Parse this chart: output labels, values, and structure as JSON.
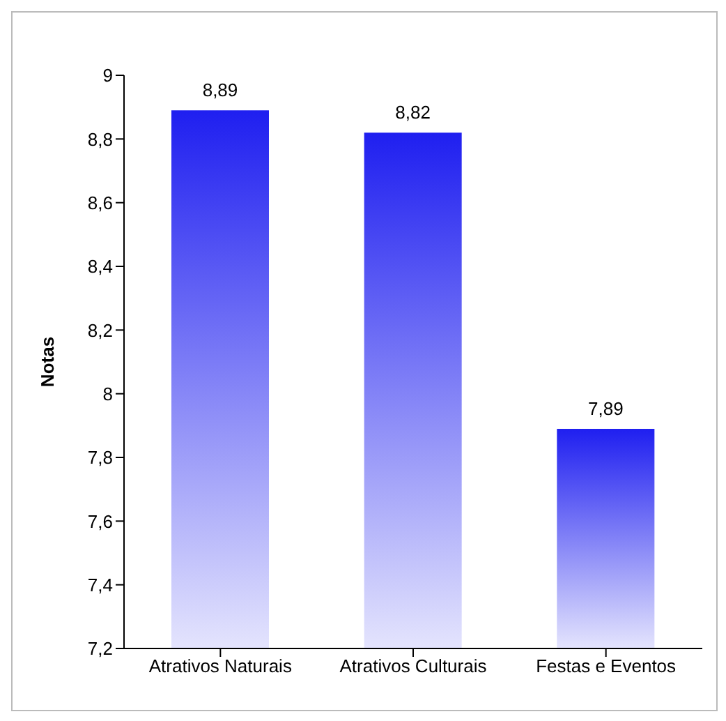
{
  "chart_data": {
    "type": "bar",
    "ylabel": "Notas",
    "categories": [
      "Atrativos Naturais",
      "Atrativos Culturais",
      "Festas e Eventos"
    ],
    "values": [
      8.89,
      8.82,
      7.89
    ],
    "value_labels": [
      "8,89",
      "8,82",
      "7,89"
    ],
    "color": "#1f1ff0",
    "ylim": [
      7.2,
      9
    ],
    "yticks": [
      {
        "value": 7.2,
        "label": "7,2"
      },
      {
        "value": 7.4,
        "label": "7,4"
      },
      {
        "value": 7.6,
        "label": "7,6"
      },
      {
        "value": 7.8,
        "label": "7,8"
      },
      {
        "value": 8,
        "label": "8"
      },
      {
        "value": 8.2,
        "label": "8,2"
      },
      {
        "value": 8.4,
        "label": "8,4"
      },
      {
        "value": 8.6,
        "label": "8,6"
      },
      {
        "value": 8.8,
        "label": "8,8"
      },
      {
        "value": 9,
        "label": "9"
      }
    ],
    "grid": false
  }
}
